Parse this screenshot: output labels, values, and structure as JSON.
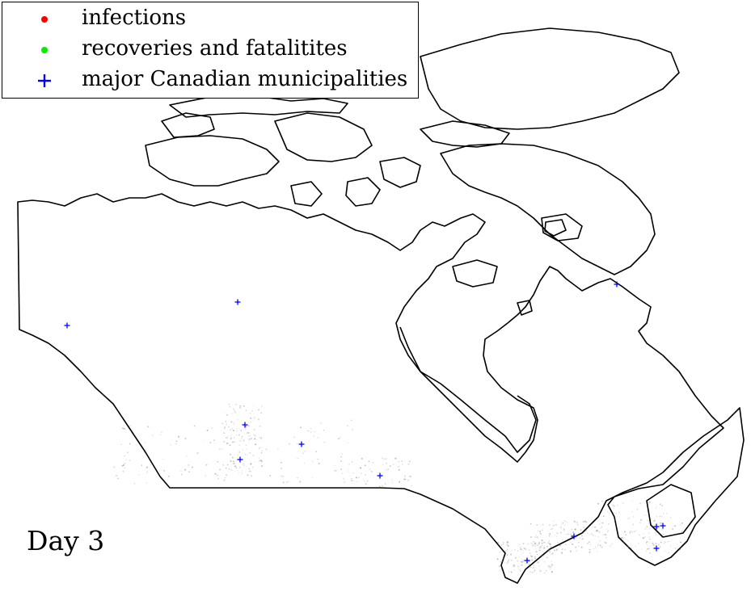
{
  "legend": {
    "items": [
      {
        "label": "infections",
        "marker": "dot",
        "color": "#ff0000"
      },
      {
        "label": "recoveries and fatalitites",
        "marker": "dot",
        "color": "#00ee00"
      },
      {
        "label": "major Canadian municipalities",
        "marker": "plus",
        "color": "#0000ff"
      }
    ]
  },
  "day_label": "Day 3",
  "colors": {
    "coastline": "#000000",
    "municipality": "#0000ff",
    "population_density": "#7a7a7a"
  }
}
